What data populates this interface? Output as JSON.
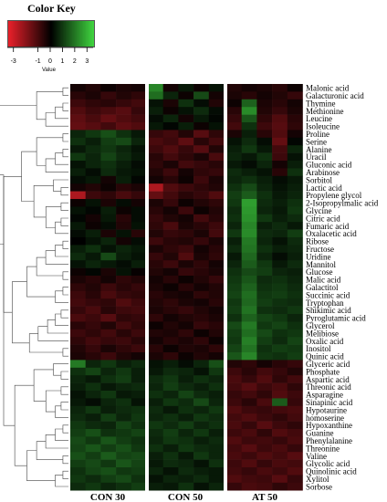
{
  "chart_data": {
    "type": "heatmap",
    "title": "Color Key",
    "key_label": "Value",
    "key_ticks": [
      "-3",
      "-1",
      "0",
      "1",
      "2",
      "3"
    ],
    "key_range": [
      -3.5,
      3.5
    ],
    "color_low": "#e8202a",
    "color_mid": "#000000",
    "color_high": "#3fd43f",
    "groups": [
      {
        "name": "CON 30",
        "columns": 5
      },
      {
        "name": "CON 50",
        "columns": 5
      },
      {
        "name": "AT 50",
        "columns": 5
      }
    ],
    "rows": [
      {
        "label": "Malonic acid",
        "values": [
          -0.3,
          -0.5,
          -0.2,
          -0.4,
          -0.3,
          2.2,
          -0.3,
          0.4,
          -0.2,
          0.3,
          -0.5,
          -0.3,
          -0.4,
          -0.6,
          -0.2
        ]
      },
      {
        "label": "Galacturonic acid",
        "values": [
          -0.6,
          -0.4,
          -0.8,
          -0.5,
          -0.7,
          1.8,
          0.6,
          -0.2,
          1.2,
          -0.3,
          -0.4,
          -0.6,
          -0.3,
          -0.5,
          -0.8
        ]
      },
      {
        "label": "Thymine",
        "values": [
          -0.9,
          -0.7,
          -0.6,
          -0.8,
          -1.0,
          0.3,
          -0.4,
          0.8,
          0.2,
          -0.5,
          -0.2,
          1.6,
          -0.4,
          -0.6,
          -0.3
        ]
      },
      {
        "label": "Methionine",
        "values": [
          -1.2,
          -0.9,
          -1.1,
          -1.3,
          -0.8,
          0.5,
          -0.2,
          0.3,
          0.7,
          0.2,
          -0.6,
          2.3,
          -0.5,
          -0.8,
          -0.4
        ]
      },
      {
        "label": "Leucine",
        "values": [
          -1.4,
          -1.1,
          -1.5,
          -1.2,
          -1.0,
          0.2,
          0.6,
          -0.3,
          0.4,
          0.1,
          -0.8,
          1.4,
          -0.7,
          -1.2,
          -0.6
        ]
      },
      {
        "label": "Isoleucine",
        "values": [
          -1.5,
          -1.3,
          -1.0,
          -1.4,
          -1.2,
          0.4,
          0.1,
          0.5,
          -0.2,
          0.3,
          -1.0,
          0.8,
          -0.9,
          -1.3,
          -0.7
        ]
      },
      {
        "label": "Proline",
        "values": [
          0.6,
          0.9,
          1.3,
          0.8,
          0.4,
          -0.8,
          -1.0,
          -0.5,
          -1.3,
          -0.7,
          -0.4,
          0.5,
          -0.6,
          -1.2,
          -0.3
        ]
      },
      {
        "label": "Serine",
        "values": [
          0.8,
          0.5,
          1.0,
          1.2,
          0.6,
          -1.1,
          -0.9,
          -1.4,
          -0.6,
          -1.0,
          0.3,
          0.7,
          0.2,
          -1.5,
          0.1
        ]
      },
      {
        "label": "Alanine",
        "values": [
          0.4,
          0.7,
          0.9,
          0.6,
          0.3,
          -0.9,
          -1.2,
          -0.8,
          -1.3,
          -0.5,
          0.5,
          0.9,
          0.4,
          -1.0,
          0.6
        ]
      },
      {
        "label": "Uracil",
        "values": [
          0.9,
          0.6,
          1.1,
          0.7,
          0.4,
          -0.6,
          -1.0,
          -0.7,
          -0.4,
          -1.1,
          0.6,
          0.4,
          0.8,
          -0.9,
          0.3
        ]
      },
      {
        "label": "Gluconic acid",
        "values": [
          0.3,
          0.6,
          0.8,
          0.5,
          0.2,
          -0.7,
          -0.4,
          -1.0,
          -0.8,
          -0.6,
          0.4,
          0.2,
          0.6,
          -0.3,
          0.5
        ]
      },
      {
        "label": "Arabinose",
        "values": [
          0.5,
          0.2,
          0.7,
          0.4,
          0.3,
          -0.5,
          -0.9,
          -0.3,
          -0.7,
          -0.8,
          0.7,
          0.5,
          0.3,
          -0.6,
          0.8
        ]
      },
      {
        "label": "Sorbitol",
        "values": [
          0.2,
          0.4,
          -0.3,
          0.5,
          0.1,
          -0.3,
          -0.6,
          -0.2,
          -0.9,
          -0.4,
          0.6,
          0.8,
          0.5,
          0.2,
          0.4
        ]
      },
      {
        "label": "Lactic acid",
        "values": [
          -0.3,
          -0.5,
          -0.2,
          -0.6,
          -0.4,
          -2.6,
          -1.2,
          -0.9,
          -0.7,
          -0.5,
          0.8,
          1.2,
          0.6,
          0.3,
          0.5
        ]
      },
      {
        "label": "Propylene glycol",
        "values": [
          -2.6,
          -0.9,
          -0.7,
          -1.1,
          -0.8,
          -1.5,
          -1.0,
          -0.6,
          -0.8,
          -1.2,
          1.0,
          1.5,
          0.8,
          0.4,
          0.6
        ]
      },
      {
        "label": "2-Isopropylmalic acid",
        "values": [
          -0.2,
          0.3,
          -0.4,
          0.2,
          -0.3,
          -0.4,
          -0.8,
          -0.2,
          -0.5,
          -0.7,
          0.9,
          2.6,
          0.7,
          0.5,
          0.8
        ]
      },
      {
        "label": "Glycine",
        "values": [
          0.3,
          0.1,
          0.5,
          -0.2,
          0.2,
          -0.6,
          -0.3,
          -0.9,
          -0.2,
          -0.5,
          0.7,
          2.5,
          0.6,
          0.4,
          0.9
        ]
      },
      {
        "label": "Citric acid",
        "values": [
          0.1,
          -0.3,
          0.4,
          -0.6,
          0.2,
          -0.8,
          -0.5,
          -0.3,
          -1.0,
          -0.6,
          0.8,
          2.4,
          0.9,
          0.5,
          0.7
        ]
      },
      {
        "label": "Fumaric acid",
        "values": [
          0.4,
          -0.2,
          0.2,
          -0.5,
          0.3,
          -0.7,
          -1.1,
          -0.4,
          -0.6,
          -0.9,
          0.6,
          2.2,
          0.5,
          0.7,
          0.4
        ]
      },
      {
        "label": "Oxalacetic acid",
        "values": [
          0.2,
          0.5,
          -0.4,
          0.3,
          -0.6,
          -0.5,
          -0.8,
          -0.7,
          -0.4,
          -1.0,
          0.9,
          2.3,
          0.7,
          0.6,
          1.0
        ]
      },
      {
        "label": "Ribose",
        "values": [
          0.0,
          0.3,
          0.6,
          -0.3,
          0.2,
          -0.9,
          -0.6,
          -0.5,
          -0.8,
          -0.4,
          0.5,
          2.0,
          0.6,
          0.3,
          0.7
        ]
      },
      {
        "label": "Fructose",
        "values": [
          0.5,
          0.8,
          0.3,
          0.6,
          0.4,
          -0.4,
          -0.7,
          -0.9,
          -0.3,
          -0.6,
          0.7,
          1.9,
          0.8,
          0.5,
          0.6
        ]
      },
      {
        "label": "Uridine",
        "values": [
          0.7,
          0.4,
          1.2,
          0.5,
          0.3,
          -0.8,
          -0.5,
          -1.2,
          -0.4,
          -0.7,
          0.4,
          1.7,
          0.6,
          0.2,
          0.5
        ]
      },
      {
        "label": "Mannitol",
        "values": [
          0.3,
          0.6,
          0.4,
          0.2,
          0.5,
          -0.6,
          -0.9,
          -0.4,
          -0.7,
          -0.3,
          0.6,
          1.5,
          0.9,
          0.4,
          0.7
        ]
      },
      {
        "label": "Glucose",
        "values": [
          -0.2,
          0.1,
          -0.4,
          0.3,
          -0.1,
          -0.5,
          -0.3,
          -0.8,
          -0.6,
          -0.4,
          0.8,
          1.2,
          1.0,
          0.6,
          0.5
        ]
      },
      {
        "label": "Malic acid",
        "values": [
          -0.4,
          -0.6,
          -0.3,
          -0.7,
          -0.5,
          -0.3,
          -0.6,
          -0.2,
          -0.5,
          -0.8,
          0.9,
          1.4,
          0.7,
          0.8,
          0.6
        ]
      },
      {
        "label": "Galactitol",
        "values": [
          -0.7,
          -0.5,
          -0.9,
          -0.6,
          -0.8,
          -0.4,
          -0.2,
          -0.6,
          -0.3,
          -0.5,
          1.0,
          1.6,
          0.8,
          0.9,
          0.7
        ]
      },
      {
        "label": "Succinic acid",
        "values": [
          -0.9,
          -0.6,
          -1.1,
          -0.8,
          -0.7,
          -0.6,
          -0.4,
          -0.3,
          -0.7,
          -0.5,
          1.1,
          1.8,
          0.9,
          1.0,
          0.8
        ]
      },
      {
        "label": "Tryptophan",
        "values": [
          -1.0,
          -0.8,
          -0.7,
          -1.2,
          -0.9,
          -0.5,
          -0.7,
          -0.4,
          -0.3,
          -0.6,
          0.9,
          1.7,
          1.0,
          0.8,
          0.7
        ]
      },
      {
        "label": "Shikimic acid",
        "values": [
          -0.8,
          -1.1,
          -0.6,
          -0.9,
          -1.0,
          -0.4,
          -0.6,
          -0.8,
          -0.5,
          -0.3,
          1.0,
          1.9,
          0.8,
          0.7,
          0.9
        ]
      },
      {
        "label": "Pyroglutamic acid",
        "values": [
          -1.1,
          -0.9,
          -1.3,
          -0.7,
          -0.8,
          -0.7,
          -0.3,
          -0.5,
          -0.6,
          -0.4,
          0.8,
          1.6,
          1.1,
          0.9,
          0.6
        ]
      },
      {
        "label": "Glycerol",
        "values": [
          -0.6,
          -0.8,
          -0.5,
          -1.0,
          -0.7,
          -0.2,
          -0.5,
          -0.3,
          -0.8,
          -0.6,
          1.2,
          2.0,
          0.9,
          1.1,
          0.8
        ]
      },
      {
        "label": "Melibiose",
        "values": [
          -0.9,
          -0.7,
          -1.0,
          -0.6,
          -0.9,
          -0.5,
          -0.4,
          -0.7,
          -0.2,
          -0.5,
          1.0,
          1.8,
          1.2,
          0.8,
          0.9
        ]
      },
      {
        "label": "Oxalic acid",
        "values": [
          -0.7,
          -1.0,
          -0.8,
          -0.9,
          -0.6,
          -0.3,
          -0.6,
          -0.4,
          -0.7,
          -0.2,
          0.9,
          2.1,
          1.0,
          0.7,
          1.1
        ]
      },
      {
        "label": "Inositol",
        "values": [
          -0.5,
          -0.8,
          -0.4,
          -0.7,
          -0.9,
          -0.6,
          -0.2,
          -0.5,
          -0.4,
          -0.7,
          1.1,
          1.9,
          0.8,
          1.0,
          0.9
        ]
      },
      {
        "label": "Quinic acid",
        "values": [
          -0.4,
          -0.6,
          -0.9,
          -0.5,
          -0.3,
          -0.4,
          -0.7,
          -0.2,
          -0.5,
          -0.3,
          1.4,
          2.2,
          0.9,
          0.8,
          1.0
        ]
      },
      {
        "label": "Glyceric acid",
        "values": [
          2.0,
          0.6,
          0.9,
          0.5,
          0.7,
          0.3,
          0.5,
          0.2,
          0.6,
          1.3,
          -0.5,
          -0.7,
          -0.3,
          -0.6,
          -0.8
        ]
      },
      {
        "label": "Phosphate",
        "values": [
          0.8,
          1.1,
          0.6,
          0.9,
          0.5,
          0.4,
          0.7,
          0.6,
          0.3,
          0.9,
          -0.9,
          -0.6,
          -1.0,
          -0.8,
          -0.5
        ]
      },
      {
        "label": "Aspartic acid",
        "values": [
          0.6,
          0.4,
          0.8,
          1.0,
          0.5,
          0.7,
          0.9,
          0.5,
          0.8,
          0.6,
          -1.1,
          -0.8,
          -1.2,
          -0.7,
          -1.0
        ]
      },
      {
        "label": "Threonic acid",
        "values": [
          0.5,
          0.8,
          0.4,
          0.6,
          0.7,
          0.6,
          1.0,
          0.7,
          0.5,
          0.8,
          -1.0,
          -1.3,
          -0.9,
          -1.1,
          -0.7
        ]
      },
      {
        "label": "Asparagine",
        "values": [
          0.3,
          0.6,
          0.9,
          0.4,
          0.5,
          0.8,
          0.6,
          1.1,
          0.7,
          0.5,
          -0.8,
          -1.0,
          -0.7,
          -1.2,
          -0.9
        ]
      },
      {
        "label": "Sinapinic acid",
        "values": [
          0.4,
          0.2,
          0.6,
          0.8,
          0.3,
          0.5,
          0.9,
          0.7,
          1.2,
          0.6,
          -0.9,
          -0.6,
          -1.1,
          1.5,
          -0.8
        ]
      },
      {
        "label": "Hypotaurine",
        "values": [
          0.6,
          0.9,
          0.5,
          0.7,
          0.8,
          0.7,
          0.4,
          0.8,
          0.6,
          0.9,
          -1.2,
          -0.9,
          -0.8,
          -1.0,
          -1.1
        ]
      },
      {
        "label": "homoserine",
        "values": [
          0.7,
          0.5,
          1.0,
          0.6,
          0.9,
          0.6,
          0.8,
          0.5,
          0.9,
          0.7,
          -1.0,
          -1.2,
          -0.9,
          -0.7,
          -1.0
        ]
      },
      {
        "label": "Hypoxanthine",
        "values": [
          0.9,
          0.7,
          0.6,
          1.1,
          0.8,
          0.9,
          0.7,
          1.0,
          0.6,
          0.8,
          -1.1,
          -0.8,
          -1.3,
          -0.9,
          -0.7
        ]
      },
      {
        "label": "Guanine",
        "values": [
          1.0,
          1.3,
          0.8,
          0.9,
          1.1,
          0.7,
          1.0,
          0.6,
          0.9,
          0.5,
          -0.9,
          -1.1,
          -0.7,
          -1.2,
          -1.0
        ]
      },
      {
        "label": "Phenylalanine",
        "values": [
          1.2,
          0.9,
          1.4,
          1.0,
          0.8,
          0.6,
          0.9,
          0.8,
          0.5,
          0.7,
          -1.2,
          -0.9,
          -1.0,
          -0.8,
          -1.1
        ]
      },
      {
        "label": "Threonine",
        "values": [
          1.1,
          1.4,
          1.0,
          1.3,
          0.9,
          0.8,
          0.5,
          0.9,
          0.7,
          0.6,
          -1.0,
          -1.3,
          -0.9,
          -1.1,
          -0.8
        ]
      },
      {
        "label": "Valine",
        "values": [
          1.3,
          1.0,
          1.5,
          1.1,
          1.2,
          0.5,
          0.8,
          0.4,
          0.9,
          0.6,
          -1.1,
          -0.9,
          -1.2,
          -1.0,
          -1.3
        ]
      },
      {
        "label": "Glycolic acid",
        "values": [
          1.0,
          1.2,
          0.9,
          1.4,
          1.1,
          0.4,
          0.7,
          0.6,
          0.3,
          0.8,
          -0.9,
          -1.2,
          -0.8,
          -1.1,
          -1.0
        ]
      },
      {
        "label": "Quinolinic acid",
        "values": [
          0.8,
          1.1,
          1.3,
          0.9,
          1.0,
          0.6,
          0.3,
          0.7,
          0.5,
          0.4,
          -1.0,
          -0.8,
          -1.1,
          -0.9,
          -1.2
        ]
      },
      {
        "label": "Xylitol",
        "values": [
          0.9,
          0.7,
          1.0,
          1.2,
          0.8,
          0.3,
          0.6,
          0.5,
          0.7,
          0.4,
          -1.2,
          -1.0,
          -0.9,
          -1.3,
          -0.8
        ]
      },
      {
        "label": "Sorbose",
        "values": [
          0.7,
          0.9,
          0.6,
          0.8,
          1.0,
          0.5,
          0.4,
          0.8,
          0.3,
          0.6,
          -0.8,
          -1.1,
          -1.0,
          -0.7,
          -0.9
        ]
      }
    ]
  }
}
